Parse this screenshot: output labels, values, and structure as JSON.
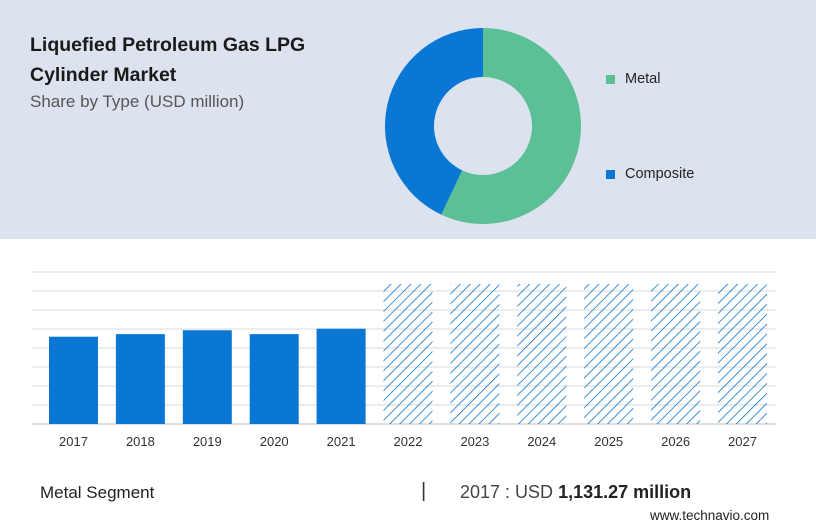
{
  "header": {
    "title": "Liquefied Petroleum Gas LPG Cylinder Market",
    "subtitle": "Share by Type (USD million)"
  },
  "colors": {
    "metal": "#5bc095",
    "composite": "#0a77d4",
    "bar": "#0a77d4",
    "forecast_hatch": "#0a77d4",
    "panel_bg": "#dde3ee"
  },
  "chart_data": [
    {
      "type": "pie",
      "donut": true,
      "slices": [
        {
          "label": "Metal",
          "value": 57
        },
        {
          "label": "Composite",
          "value": 43
        }
      ],
      "legend_position": "right"
    },
    {
      "type": "bar",
      "categories": [
        "2017",
        "2018",
        "2019",
        "2020",
        "2021",
        "2022",
        "2023",
        "2024",
        "2025",
        "2026",
        "2027"
      ],
      "values": [
        1131.27,
        1165,
        1215,
        1165,
        1235,
        null,
        null,
        null,
        null,
        null,
        null
      ],
      "forecast_categories": [
        "2022",
        "2023",
        "2024",
        "2025",
        "2026",
        "2027"
      ],
      "forecast_style": "hatched",
      "ylim": [
        0,
        1970
      ],
      "grid": true
    }
  ],
  "footer": {
    "segment_label": "Metal Segment",
    "separator": "|",
    "year_label": "2017 : USD",
    "value_label": "1,131.27 million",
    "brand": "www.technavio.com"
  }
}
